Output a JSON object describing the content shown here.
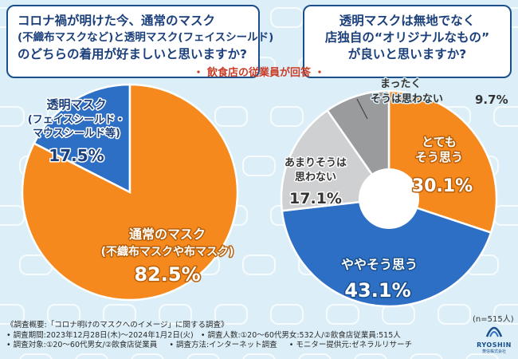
{
  "questions": {
    "left": [
      "コロナ禍が明けた今、通常のマスク",
      "(不織布マスクなど)と透明マスク(フェイスシールド)",
      "のどちらの着用が好ましいと思いますか?"
    ],
    "right": [
      "透明マスクは無地でなく",
      "店独自の“オリジナルなもの”",
      "が良いと思いますか?"
    ]
  },
  "respondent_note": "・ 飲食店の従業員が回答 ・",
  "chart_data": [
    {
      "type": "pie",
      "title": "コロナ禍が明けた今、通常のマスク(不織布マスクなど)と透明マスク(フェイスシールド)のどちらの着用が好ましいと思いますか?",
      "categories": [
        "透明マスク(フェイスシールド・マウスシールド等)",
        "通常のマスク(不織布マスクや布マスク)"
      ],
      "values": [
        17.5,
        82.5
      ],
      "colors": [
        "#2d6fc4",
        "#f5891d"
      ],
      "labels": [
        {
          "lines": [
            "透明マスク",
            "(フェイスシールド・",
            "マウスシールド等)"
          ],
          "value": "17.5%"
        },
        {
          "lines": [
            "通常のマスク",
            "(不織布マスクや布マスク)"
          ],
          "value": "82.5%"
        }
      ]
    },
    {
      "type": "pie",
      "title": "透明マスクは無地でなく店独自の“オリジナルなもの”が良いと思いますか?",
      "categories": [
        "とてもそう思う",
        "ややそう思う",
        "あまりそうは思わない",
        "まったくそうは思わない"
      ],
      "values": [
        30.1,
        43.1,
        17.1,
        9.7
      ],
      "colors": [
        "#f5891d",
        "#2d6fc4",
        "#cfd0d2",
        "#9a9b9d"
      ],
      "labels": [
        {
          "lines": [
            "とても",
            "そう思う"
          ],
          "value": "30.1%"
        },
        {
          "lines": [
            "ややそう思う"
          ],
          "value": "43.1%"
        },
        {
          "lines": [
            "あまりそうは",
            "思わない"
          ],
          "value": "17.1%"
        },
        {
          "lines": [
            "まったく",
            "そうは思わない"
          ],
          "value": "9.7%"
        }
      ],
      "sample_size": "(n=515人)"
    }
  ],
  "footer": [
    [
      "《調査概要:「コロナ明けのマスクへのイメージ」に関する調査》"
    ],
    [
      "• 調査期間:2023年12月28日(木)〜2024年1月2日(火)",
      "• 調査人数:①20〜60代男女:532人/②飲食店従業員:515人"
    ],
    [
      "• 調査対象:①20〜60代男女/②飲食店従業員",
      "• 調査方法:インターネット調査",
      "• モニター提供元:ゼネラルリサーチ"
    ]
  ],
  "logo": {
    "name": "RYOSHIN",
    "sub": "菱信株式会社"
  },
  "colors": {
    "navy": "#1a4f8c",
    "orange": "#f5891d",
    "blue": "#2d6fc4"
  }
}
